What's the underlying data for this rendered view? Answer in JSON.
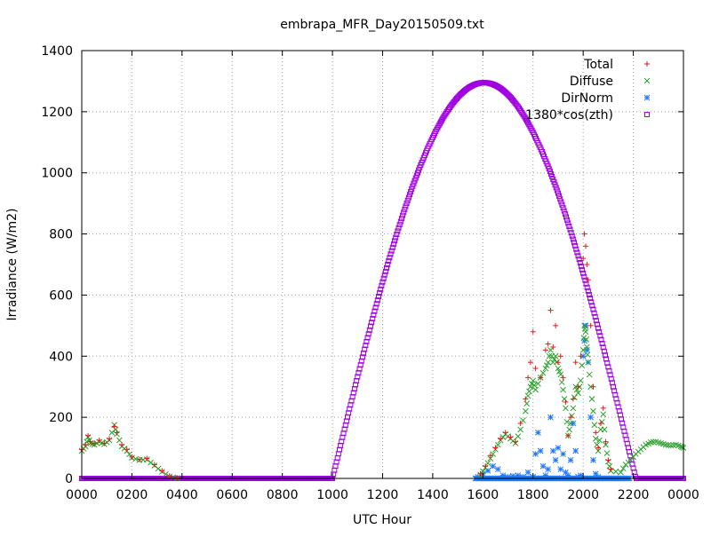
{
  "chart_data": {
    "type": "scatter",
    "title": "embrapa_MFR_Day20150509.txt",
    "xlabel": "UTC Hour",
    "ylabel": "Irradiance (W/m2)",
    "xlim": [
      0,
      24
    ],
    "ylim": [
      0,
      1400
    ],
    "grid": true,
    "legend_position": "top-right",
    "x_ticks": [
      {
        "value": 0,
        "label": "0000"
      },
      {
        "value": 2,
        "label": "0200"
      },
      {
        "value": 4,
        "label": "0400"
      },
      {
        "value": 6,
        "label": "0600"
      },
      {
        "value": 8,
        "label": "0800"
      },
      {
        "value": 10,
        "label": "1000"
      },
      {
        "value": 12,
        "label": "1200"
      },
      {
        "value": 14,
        "label": "1400"
      },
      {
        "value": 16,
        "label": "1600"
      },
      {
        "value": 18,
        "label": "1800"
      },
      {
        "value": 20,
        "label": "2000"
      },
      {
        "value": 22,
        "label": "2200"
      },
      {
        "value": 24,
        "label": "0000"
      }
    ],
    "y_ticks": [
      0,
      200,
      400,
      600,
      800,
      1000,
      1200,
      1400
    ],
    "series": [
      {
        "name": "Total",
        "marker": "plus",
        "color": "#e41a1c",
        "points": [
          [
            0.0,
            95
          ],
          [
            0.15,
            110
          ],
          [
            0.25,
            140
          ],
          [
            0.35,
            120
          ],
          [
            0.5,
            115
          ],
          [
            0.7,
            125
          ],
          [
            0.9,
            115
          ],
          [
            1.1,
            130
          ],
          [
            1.3,
            170
          ],
          [
            1.4,
            150
          ],
          [
            1.6,
            110
          ],
          [
            1.8,
            95
          ],
          [
            2.0,
            70
          ],
          [
            2.3,
            62
          ],
          [
            2.6,
            65
          ],
          [
            2.9,
            45
          ],
          [
            3.2,
            25
          ],
          [
            3.5,
            8
          ],
          [
            3.8,
            2
          ],
          [
            15.9,
            15
          ],
          [
            16.1,
            40
          ],
          [
            16.3,
            75
          ],
          [
            16.5,
            100
          ],
          [
            16.7,
            130
          ],
          [
            16.9,
            150
          ],
          [
            17.1,
            135
          ],
          [
            17.3,
            120
          ],
          [
            17.5,
            180
          ],
          [
            17.7,
            260
          ],
          [
            17.8,
            330
          ],
          [
            17.9,
            380
          ],
          [
            18.0,
            480
          ],
          [
            18.1,
            360
          ],
          [
            18.3,
            330
          ],
          [
            18.5,
            420
          ],
          [
            18.6,
            440
          ],
          [
            18.7,
            550
          ],
          [
            18.8,
            430
          ],
          [
            18.9,
            500
          ],
          [
            19.0,
            380
          ],
          [
            19.1,
            400
          ],
          [
            19.2,
            330
          ],
          [
            19.3,
            250
          ],
          [
            19.4,
            140
          ],
          [
            19.5,
            200
          ],
          [
            19.6,
            260
          ],
          [
            19.7,
            380
          ],
          [
            19.8,
            300
          ],
          [
            19.9,
            400
          ],
          [
            20.0,
            720
          ],
          [
            20.05,
            800
          ],
          [
            20.1,
            760
          ],
          [
            20.15,
            700
          ],
          [
            20.2,
            650
          ],
          [
            20.3,
            500
          ],
          [
            20.4,
            300
          ],
          [
            20.5,
            150
          ],
          [
            20.6,
            100
          ],
          [
            20.7,
            180
          ],
          [
            20.8,
            230
          ],
          [
            20.9,
            120
          ],
          [
            21.0,
            60
          ],
          [
            21.1,
            30
          ]
        ]
      },
      {
        "name": "Diffuse",
        "marker": "cross",
        "color": "#2ca02c",
        "points": [
          [
            0.0,
            90
          ],
          [
            0.15,
            105
          ],
          [
            0.25,
            135
          ],
          [
            0.35,
            115
          ],
          [
            0.5,
            110
          ],
          [
            0.7,
            120
          ],
          [
            0.9,
            112
          ],
          [
            1.1,
            125
          ],
          [
            1.3,
            175
          ],
          [
            1.4,
            145
          ],
          [
            1.6,
            105
          ],
          [
            1.8,
            90
          ],
          [
            2.0,
            68
          ],
          [
            2.3,
            60
          ],
          [
            2.6,
            62
          ],
          [
            2.9,
            42
          ],
          [
            3.2,
            22
          ],
          [
            3.5,
            6
          ],
          [
            3.8,
            1
          ],
          [
            15.9,
            12
          ],
          [
            16.1,
            35
          ],
          [
            16.3,
            65
          ],
          [
            16.5,
            95
          ],
          [
            16.7,
            125
          ],
          [
            16.9,
            145
          ],
          [
            17.1,
            130
          ],
          [
            17.3,
            115
          ],
          [
            17.5,
            160
          ],
          [
            17.7,
            220
          ],
          [
            17.8,
            270
          ],
          [
            17.9,
            300
          ],
          [
            18.0,
            320
          ],
          [
            18.1,
            290
          ],
          [
            18.3,
            330
          ],
          [
            18.5,
            360
          ],
          [
            18.6,
            380
          ],
          [
            18.7,
            420
          ],
          [
            18.8,
            380
          ],
          [
            18.9,
            400
          ],
          [
            19.0,
            360
          ],
          [
            19.1,
            340
          ],
          [
            19.2,
            290
          ],
          [
            19.3,
            230
          ],
          [
            19.4,
            140
          ],
          [
            19.5,
            180
          ],
          [
            19.6,
            230
          ],
          [
            19.7,
            300
          ],
          [
            19.8,
            280
          ],
          [
            19.9,
            320
          ],
          [
            20.0,
            420
          ],
          [
            20.05,
            500
          ],
          [
            20.1,
            480
          ],
          [
            20.15,
            430
          ],
          [
            20.2,
            380
          ],
          [
            20.3,
            300
          ],
          [
            20.4,
            220
          ],
          [
            20.5,
            130
          ],
          [
            20.6,
            90
          ],
          [
            20.7,
            160
          ],
          [
            20.8,
            210
          ],
          [
            20.9,
            110
          ],
          [
            21.0,
            55
          ],
          [
            21.1,
            25
          ],
          [
            21.5,
            20
          ],
          [
            21.7,
            45
          ],
          [
            21.9,
            60
          ],
          [
            22.1,
            80
          ],
          [
            22.3,
            95
          ],
          [
            22.5,
            110
          ],
          [
            22.7,
            118
          ],
          [
            22.9,
            120
          ],
          [
            23.1,
            115
          ],
          [
            23.3,
            110
          ],
          [
            23.5,
            108
          ],
          [
            23.7,
            110
          ],
          [
            23.9,
            105
          ],
          [
            24.0,
            100
          ]
        ]
      },
      {
        "name": "DirNorm",
        "marker": "star",
        "color": "#1f78ff",
        "points": [
          [
            15.8,
            5
          ],
          [
            16.0,
            15
          ],
          [
            16.2,
            25
          ],
          [
            16.4,
            40
          ],
          [
            16.6,
            30
          ],
          [
            16.8,
            10
          ],
          [
            17.0,
            5
          ],
          [
            17.2,
            8
          ],
          [
            17.4,
            10
          ],
          [
            17.6,
            5
          ],
          [
            17.8,
            20
          ],
          [
            18.0,
            5
          ],
          [
            18.1,
            80
          ],
          [
            18.2,
            150
          ],
          [
            18.3,
            90
          ],
          [
            18.4,
            40
          ],
          [
            18.5,
            10
          ],
          [
            18.6,
            30
          ],
          [
            18.7,
            200
          ],
          [
            18.8,
            90
          ],
          [
            18.9,
            60
          ],
          [
            19.0,
            100
          ],
          [
            19.1,
            30
          ],
          [
            19.2,
            80
          ],
          [
            19.3,
            20
          ],
          [
            19.4,
            10
          ],
          [
            19.5,
            60
          ],
          [
            19.6,
            180
          ],
          [
            19.7,
            90
          ],
          [
            19.8,
            5
          ],
          [
            19.9,
            10
          ],
          [
            20.0,
            400
          ],
          [
            20.05,
            450
          ],
          [
            20.1,
            500
          ],
          [
            20.15,
            420
          ],
          [
            20.2,
            380
          ],
          [
            20.3,
            200
          ],
          [
            20.4,
            60
          ],
          [
            20.5,
            15
          ],
          [
            20.6,
            5
          ]
        ]
      },
      {
        "name": "1380*cos(zth)",
        "marker": "square",
        "color": "#a000e0",
        "peak": 1295,
        "rise": 10.0,
        "noon": 16.05,
        "set": 22.1
      }
    ]
  }
}
